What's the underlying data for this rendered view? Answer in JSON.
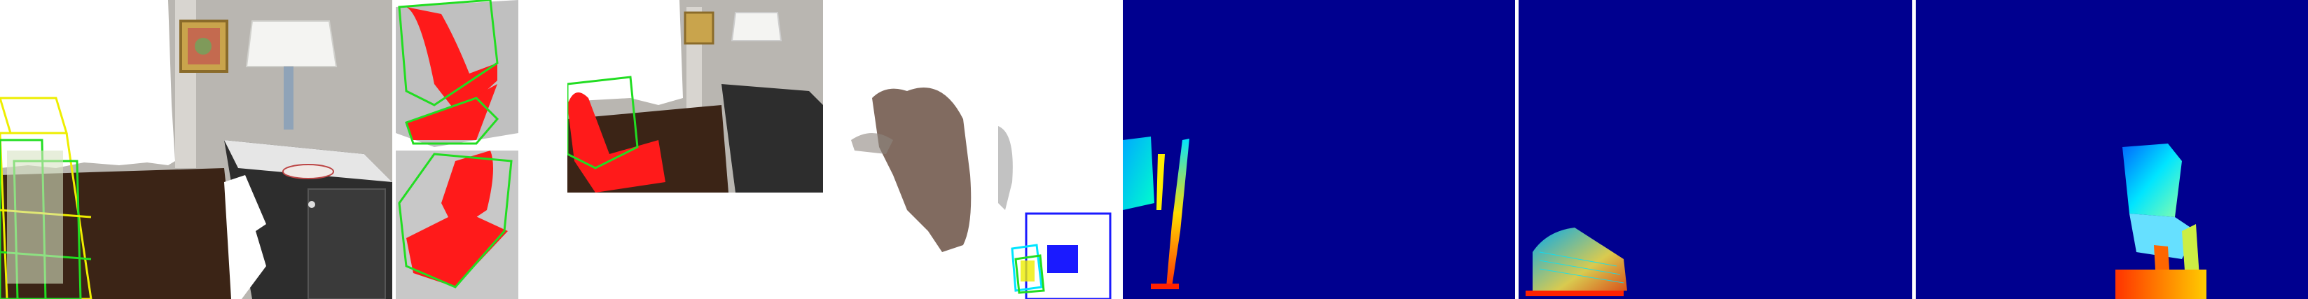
{
  "figure": {
    "panels": [
      {
        "name": "rgb-scene-with-3d-boxes",
        "kind": "photo"
      },
      {
        "name": "cropped-chair-views",
        "kind": "photo"
      },
      {
        "name": "rgb-scene-second-view",
        "kind": "photo"
      },
      {
        "name": "point-cloud-view",
        "kind": "point-cloud"
      },
      {
        "name": "depth-map-1",
        "kind": "depth"
      },
      {
        "name": "depth-map-2",
        "kind": "depth"
      },
      {
        "name": "depth-map-3",
        "kind": "depth"
      }
    ],
    "colors": {
      "depth_background": "#00008f",
      "box_green": "#22dd22",
      "box_yellow": "#eeee00",
      "box_blue": "#1a1aff",
      "box_cyan": "#00e5ff",
      "chair_red": "#ff1a1a",
      "floor_brown": "#3b2416",
      "wall_gray": "#b9b6b1",
      "separator": "#ffffff"
    }
  }
}
